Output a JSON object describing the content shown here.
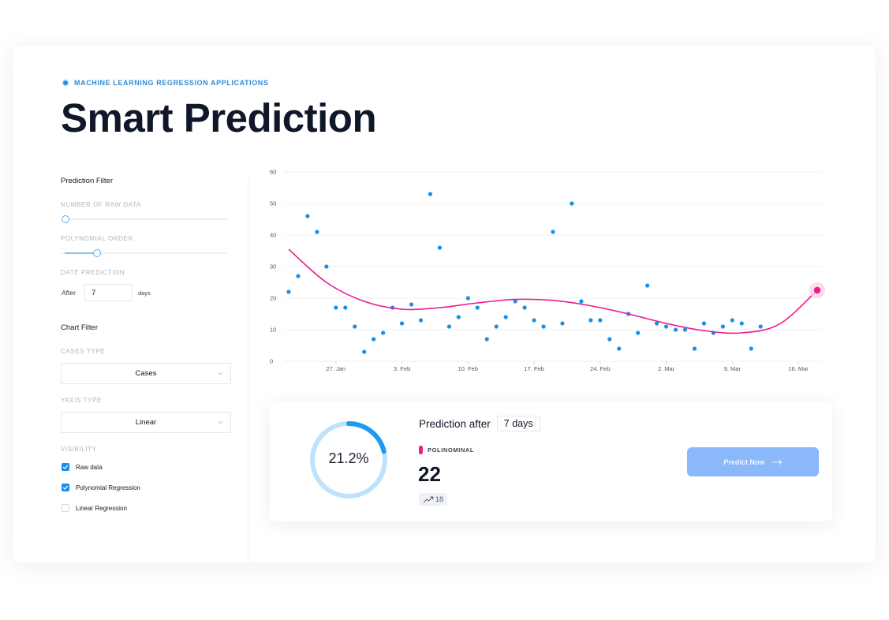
{
  "header": {
    "eyebrow": "MACHINE LEARNING REGRESSION APPLICATIONS",
    "title": "Smart Prediction"
  },
  "prediction_filter": {
    "title": "Prediction Filter",
    "raw_data_label": "NUMBER OF RAW DATA",
    "raw_data_level": 0,
    "polynomial_order_label": "POLYNOMIAL ORDER",
    "polynomial_order_level": 0.2,
    "date_prediction_label": "DATE PREDICTION",
    "after_label": "After",
    "after_value": "7",
    "days_label": "days"
  },
  "chart_filter": {
    "title": "Chart Filter",
    "cases_type_label": "CASES TYPE",
    "cases_type_value": "Cases",
    "yaxis_type_label": "YAXIS TYPE",
    "yaxis_type_value": "Linear",
    "visibility_label": "VISIBILITY",
    "options": [
      {
        "label": "Raw data",
        "checked": true
      },
      {
        "label": "Polynomial Regression",
        "checked": true
      },
      {
        "label": "Linear Regression",
        "checked": false
      }
    ]
  },
  "chart_data": {
    "type": "scatter",
    "ylim": [
      0,
      60
    ],
    "y_ticks": [
      "0",
      "10",
      "20",
      "30",
      "40",
      "50",
      "60"
    ],
    "x_tick_labels": [
      "27. Jan",
      "3. Feb",
      "10. Feb",
      "17. Feb",
      "24. Feb",
      "2. Mar",
      "9. Mar",
      "16. Mar"
    ],
    "x_tick_days": [
      27,
      34,
      41,
      48,
      55,
      62,
      69,
      76
    ],
    "grid": true,
    "colors": {
      "points": "#1a8fe6",
      "regression": "#ec1a8e",
      "grid": "#eef0f4"
    },
    "series": [
      {
        "kind": "raw",
        "x": [
          22,
          23,
          24,
          25,
          26,
          27,
          28,
          29,
          30,
          31,
          32,
          33,
          34,
          35,
          36,
          37,
          38,
          39,
          40,
          41,
          42,
          43,
          44,
          45,
          46,
          47,
          48,
          49,
          50,
          51,
          52,
          53,
          54,
          55,
          56,
          57,
          58,
          59,
          60,
          61,
          62,
          63,
          64,
          65,
          66,
          67,
          68,
          69,
          70,
          71,
          72
        ],
        "y": [
          22,
          27,
          46,
          41,
          30,
          17,
          17,
          11,
          3,
          7,
          9,
          17,
          12,
          18,
          13,
          53,
          36,
          11,
          14,
          20,
          17,
          7,
          11,
          14,
          19,
          17,
          13,
          11,
          41,
          12,
          50,
          19,
          13,
          13,
          7,
          4,
          15,
          9,
          24,
          12,
          11,
          10,
          10,
          4,
          12,
          9,
          11,
          13,
          12,
          4,
          11
        ]
      },
      {
        "kind": "polynomial",
        "x": [
          22,
          26,
          30,
          34,
          38,
          42,
          46,
          50,
          54,
          58,
          62,
          66,
          70,
          74,
          78
        ],
        "y": [
          35.5,
          25,
          19,
          16.5,
          17,
          18.5,
          19.6,
          19.3,
          17.6,
          15,
          12,
          9.7,
          9,
          11.8,
          22.5
        ]
      }
    ],
    "prediction_point": {
      "x": 78,
      "y": 22.5
    }
  },
  "prediction": {
    "percent_label": "21.2%",
    "percent": 21.2,
    "title": "Prediction after",
    "days_value": "7 days",
    "series_name": "POLINOMINAL",
    "value": "22",
    "trend_value": "18",
    "button_label": "Predict Now",
    "ring_color": "#bfe2fb",
    "arc_color": "#1d9bf0",
    "button_color": "#8ab8fb"
  }
}
